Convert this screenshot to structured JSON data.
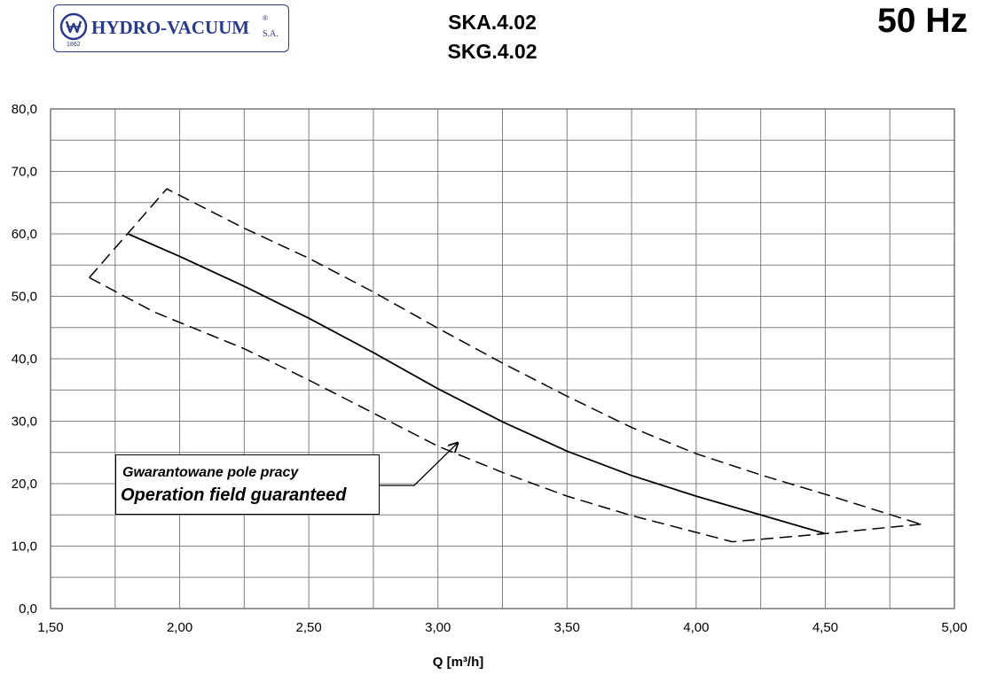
{
  "header": {
    "logo_text": "HYDRO-VACUUM",
    "logo_reg": "®",
    "logo_suffix": "S.A.",
    "logo_year": "1862",
    "model_line1": "SKA.4.02",
    "model_line2": "SKG.4.02",
    "frequency": "50 Hz"
  },
  "annotation": {
    "line1": "Gwarantowane pole pracy",
    "line2": "Operation field guaranteed"
  },
  "colors": {
    "brand": "#2a3a8a",
    "curve": "#000000",
    "grid": "#808080"
  },
  "chart_data": {
    "type": "line",
    "title": "",
    "xlabel": "Q [m³/h]",
    "ylabel": "",
    "xlim": [
      1.5,
      5.0
    ],
    "ylim": [
      0,
      80
    ],
    "x_ticks": [
      1.5,
      2.0,
      2.5,
      3.0,
      3.5,
      4.0,
      4.5,
      5.0
    ],
    "x_tick_labels": [
      "1,50",
      "2,00",
      "2,50",
      "3,00",
      "3,50",
      "4,00",
      "4,50",
      "5,00"
    ],
    "y_ticks": [
      0,
      10,
      20,
      30,
      40,
      50,
      60,
      70,
      80
    ],
    "y_tick_labels": [
      "0,0",
      "10,0",
      "20,0",
      "30,0",
      "40,0",
      "50,0",
      "60,0",
      "70,0",
      "80,0"
    ],
    "x_minor_step": 0.25,
    "y_minor_step": 5,
    "grid": true,
    "series": [
      {
        "style": "solid",
        "x": [
          1.8,
          2.0,
          2.25,
          2.5,
          2.75,
          3.0,
          3.25,
          3.5,
          3.75,
          4.0,
          4.25,
          4.5
        ],
        "y": [
          60.0,
          56.4,
          51.6,
          46.5,
          41.0,
          35.2,
          29.9,
          25.2,
          21.3,
          18.0,
          15.0,
          12.0
        ]
      },
      {
        "style": "dashed",
        "x": [
          1.65,
          1.95,
          2.25,
          2.5,
          2.75,
          3.0,
          3.25,
          3.5,
          3.75,
          4.0,
          4.25,
          4.5,
          4.87
        ],
        "y": [
          53.0,
          67.2,
          60.9,
          56.1,
          50.7,
          44.9,
          39.3,
          34.0,
          29.0,
          24.8,
          21.4,
          18.3,
          13.5
        ]
      },
      {
        "style": "dashed",
        "x": [
          1.65,
          1.9,
          2.25,
          2.5,
          2.75,
          3.0,
          3.25,
          3.5,
          3.75,
          4.0,
          4.14,
          4.5,
          4.87
        ],
        "y": [
          53.0,
          47.5,
          41.6,
          36.6,
          31.3,
          26.0,
          21.8,
          18.0,
          14.9,
          12.2,
          10.7,
          12.0,
          13.5
        ]
      }
    ]
  }
}
